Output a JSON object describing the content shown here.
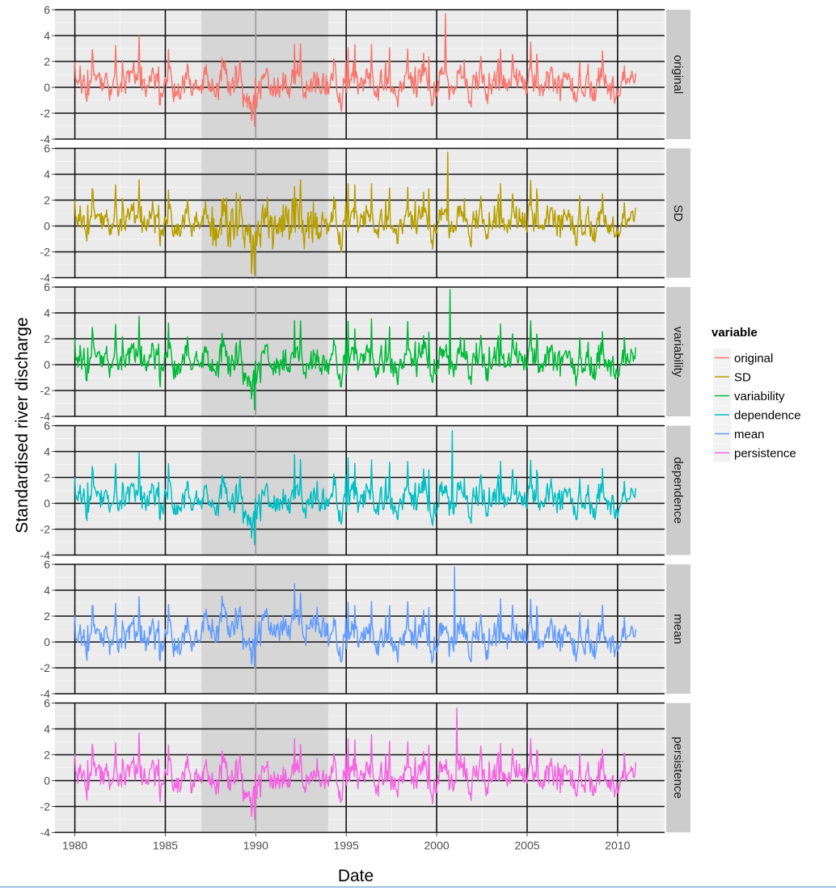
{
  "chart_data": {
    "type": "line",
    "title": "",
    "xlabel": "Date",
    "ylabel": "Standardised river discharge",
    "xlim": [
      1978.9,
      2012.6
    ],
    "ylim": [
      -4,
      6
    ],
    "x_ticks": [
      1980,
      1985,
      1990,
      1995,
      2000,
      2005,
      2010
    ],
    "y_ticks": [
      -4,
      -2,
      0,
      2,
      4,
      6
    ],
    "grid": true,
    "legend_title": "variable",
    "legend_position": "right",
    "highlight_band": {
      "from": 1987.0,
      "to": 1994.0
    },
    "sampling": {
      "start_year": 1980.0,
      "end_year": 2011.0,
      "points": 744
    },
    "series": [
      {
        "name": "original",
        "color": "#f8766d",
        "peak": 5.7,
        "trough": -3.0,
        "regime_shift": 0.0
      },
      {
        "name": "SD",
        "color": "#b79f00",
        "peak": 5.7,
        "trough": -3.8,
        "regime_shift": 0.0
      },
      {
        "name": "variability",
        "color": "#00ba38",
        "peak": 5.8,
        "trough": -3.5,
        "regime_shift": 0.0
      },
      {
        "name": "dependence",
        "color": "#00bfc4",
        "peak": 5.6,
        "trough": -3.2,
        "regime_shift": 0.0
      },
      {
        "name": "mean",
        "color": "#619cff",
        "peak": 5.8,
        "trough": -2.0,
        "regime_shift": 1.0
      },
      {
        "name": "persistence",
        "color": "#f564e3",
        "peak": 5.6,
        "trough": -3.0,
        "regime_shift": 0.0
      }
    ]
  }
}
